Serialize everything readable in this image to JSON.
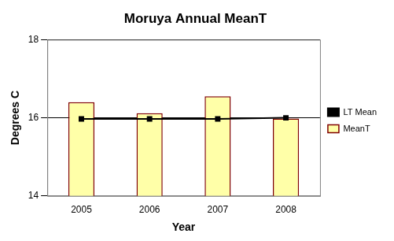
{
  "chart_data": {
    "type": "bar",
    "title": "Moruya Annual MeanT",
    "x_label": "Year",
    "y_label": "Degrees C",
    "categories": [
      "2005",
      "2006",
      "2007",
      "2008"
    ],
    "series": [
      {
        "name": "MeanT",
        "type": "bar",
        "color": "#ffffa8",
        "values": [
          16.4,
          16.12,
          16.55,
          15.98
        ]
      },
      {
        "name": "LT Mean",
        "type": "line",
        "color": "#000000",
        "marker": "square",
        "line_style": "solid",
        "values": [
          15.97,
          15.97,
          15.97,
          16.0
        ]
      }
    ],
    "ylim": [
      14,
      18
    ],
    "yticks": [
      14,
      16,
      18
    ],
    "grid": true,
    "legend": "right"
  }
}
